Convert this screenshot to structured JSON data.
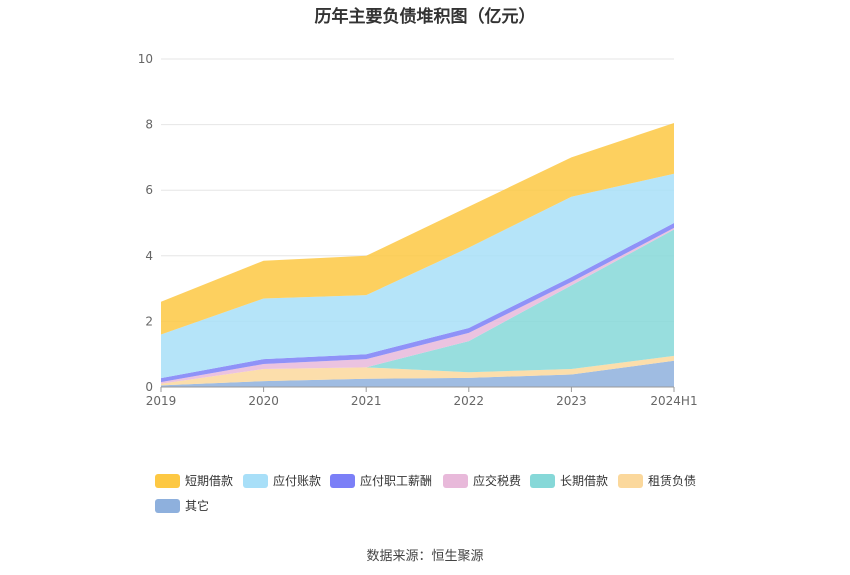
{
  "chart_data": {
    "type": "area",
    "title": "历年主要负债堆积图（亿元）",
    "source": "数据来源：恒生聚源",
    "categories": [
      "2019",
      "2020",
      "2021",
      "2022",
      "2023",
      "2024H1"
    ],
    "ylim": [
      0,
      10
    ],
    "yticks": [
      "0",
      "2",
      "4",
      "6",
      "8",
      "10"
    ],
    "grid": true,
    "legend_position": "bottom",
    "stacked": true,
    "series": [
      {
        "name": "其它",
        "color": "#8eb0dd",
        "values": [
          0.05,
          0.18,
          0.25,
          0.28,
          0.38,
          0.8
        ]
      },
      {
        "name": "租赁负债",
        "color": "#fbd89c",
        "values": [
          0.05,
          0.37,
          0.35,
          0.17,
          0.17,
          0.15
        ]
      },
      {
        "name": "长期借款",
        "color": "#86d8d8",
        "values": [
          0.0,
          0.0,
          0.0,
          0.95,
          2.55,
          3.85
        ]
      },
      {
        "name": "应交税费",
        "color": "#e8b9da",
        "values": [
          0.05,
          0.15,
          0.25,
          0.25,
          0.1,
          0.05
        ]
      },
      {
        "name": "应付职工薪酬",
        "color": "#7b7ff7",
        "values": [
          0.12,
          0.15,
          0.15,
          0.15,
          0.15,
          0.15
        ]
      },
      {
        "name": "应付账款",
        "color": "#a8dff8",
        "values": [
          1.33,
          1.85,
          1.8,
          2.45,
          2.45,
          1.5
        ]
      },
      {
        "name": "短期借款",
        "color": "#fdc843",
        "values": [
          1.0,
          1.15,
          1.2,
          1.25,
          1.2,
          1.55
        ]
      }
    ]
  }
}
